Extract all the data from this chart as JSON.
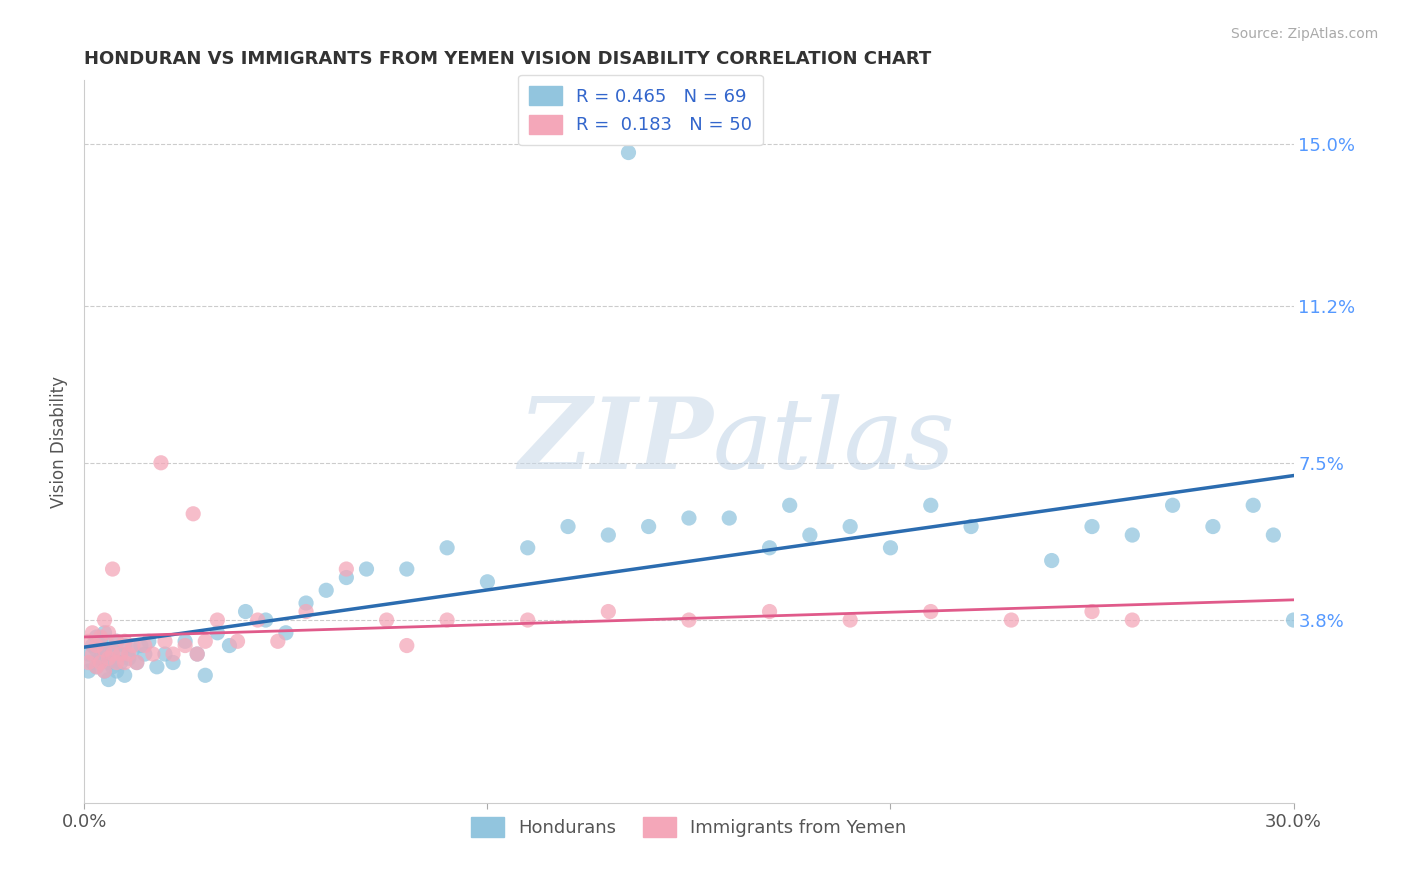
{
  "title": "HONDURAN VS IMMIGRANTS FROM YEMEN VISION DISABILITY CORRELATION CHART",
  "source": "Source: ZipAtlas.com",
  "ylabel": "Vision Disability",
  "watermark_zip": "ZIP",
  "watermark_atlas": "atlas",
  "x_min": 0.0,
  "x_max": 0.3,
  "y_min": -0.005,
  "y_max": 0.165,
  "x_ticks": [
    0.0,
    0.3
  ],
  "x_tick_labels": [
    "0.0%",
    "30.0%"
  ],
  "y_ticks": [
    0.038,
    0.075,
    0.112,
    0.15
  ],
  "y_tick_labels": [
    "3.8%",
    "7.5%",
    "11.2%",
    "15.0%"
  ],
  "blue_color": "#92c5de",
  "blue_line_color": "#2b6cb0",
  "pink_color": "#f4a7b9",
  "pink_line_color": "#e05a8a",
  "legend_blue_label_r": "R = 0.465",
  "legend_blue_label_n": "N = 69",
  "legend_pink_label_r": "R =  0.183",
  "legend_pink_label_n": "N = 50",
  "bottom_legend_blue": "Hondurans",
  "bottom_legend_pink": "Immigrants from Yemen",
  "blue_x": [
    0.001,
    0.001,
    0.002,
    0.002,
    0.003,
    0.003,
    0.003,
    0.004,
    0.004,
    0.005,
    0.005,
    0.005,
    0.006,
    0.006,
    0.006,
    0.007,
    0.007,
    0.008,
    0.008,
    0.009,
    0.009,
    0.01,
    0.01,
    0.011,
    0.012,
    0.013,
    0.014,
    0.015,
    0.016,
    0.018,
    0.02,
    0.022,
    0.025,
    0.028,
    0.03,
    0.033,
    0.036,
    0.04,
    0.045,
    0.05,
    0.055,
    0.06,
    0.065,
    0.07,
    0.08,
    0.09,
    0.1,
    0.11,
    0.12,
    0.13,
    0.14,
    0.15,
    0.16,
    0.17,
    0.18,
    0.19,
    0.2,
    0.21,
    0.22,
    0.24,
    0.25,
    0.26,
    0.27,
    0.28,
    0.29,
    0.295,
    0.3,
    0.175,
    0.135
  ],
  "blue_y": [
    0.026,
    0.03,
    0.028,
    0.032,
    0.027,
    0.031,
    0.034,
    0.029,
    0.033,
    0.026,
    0.03,
    0.035,
    0.028,
    0.032,
    0.024,
    0.027,
    0.031,
    0.026,
    0.033,
    0.028,
    0.03,
    0.025,
    0.032,
    0.029,
    0.031,
    0.028,
    0.032,
    0.03,
    0.033,
    0.027,
    0.03,
    0.028,
    0.033,
    0.03,
    0.025,
    0.035,
    0.032,
    0.04,
    0.038,
    0.035,
    0.042,
    0.045,
    0.048,
    0.05,
    0.05,
    0.055,
    0.047,
    0.055,
    0.06,
    0.058,
    0.06,
    0.062,
    0.062,
    0.055,
    0.058,
    0.06,
    0.055,
    0.065,
    0.06,
    0.052,
    0.06,
    0.058,
    0.065,
    0.06,
    0.065,
    0.058,
    0.038,
    0.065,
    0.148
  ],
  "pink_x": [
    0.001,
    0.001,
    0.002,
    0.002,
    0.003,
    0.003,
    0.004,
    0.004,
    0.005,
    0.005,
    0.005,
    0.006,
    0.006,
    0.007,
    0.007,
    0.008,
    0.008,
    0.009,
    0.01,
    0.01,
    0.011,
    0.012,
    0.013,
    0.015,
    0.017,
    0.02,
    0.022,
    0.025,
    0.028,
    0.03,
    0.033,
    0.038,
    0.043,
    0.048,
    0.055,
    0.065,
    0.075,
    0.09,
    0.11,
    0.13,
    0.15,
    0.17,
    0.19,
    0.21,
    0.23,
    0.25,
    0.26,
    0.027,
    0.019,
    0.08
  ],
  "pink_y": [
    0.028,
    0.033,
    0.03,
    0.035,
    0.027,
    0.032,
    0.028,
    0.034,
    0.026,
    0.031,
    0.038,
    0.029,
    0.035,
    0.05,
    0.03,
    0.028,
    0.033,
    0.03,
    0.028,
    0.033,
    0.03,
    0.032,
    0.028,
    0.032,
    0.03,
    0.033,
    0.03,
    0.032,
    0.03,
    0.033,
    0.038,
    0.033,
    0.038,
    0.033,
    0.04,
    0.05,
    0.038,
    0.038,
    0.038,
    0.04,
    0.038,
    0.04,
    0.038,
    0.04,
    0.038,
    0.04,
    0.038,
    0.063,
    0.075,
    0.032
  ]
}
